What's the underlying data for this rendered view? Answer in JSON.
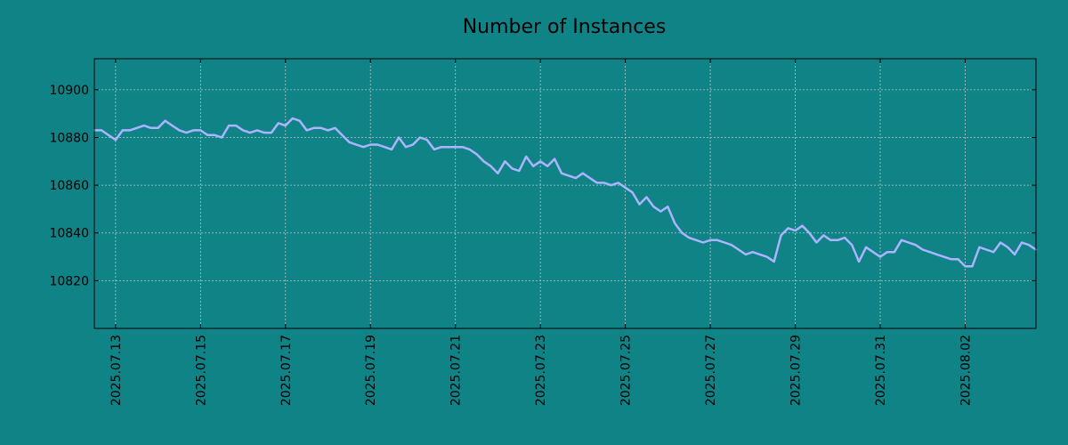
{
  "chart_data": {
    "type": "line",
    "title": "Number of Instances",
    "xlabel": "",
    "ylabel": "",
    "x_ticks": [
      "2025.07.13",
      "2025.07.15",
      "2025.07.17",
      "2025.07.19",
      "2025.07.21",
      "2025.07.23",
      "2025.07.25",
      "2025.07.27",
      "2025.07.29",
      "2025.07.31",
      "2025.08.02"
    ],
    "y_ticks": [
      10820,
      10840,
      10860,
      10880,
      10900
    ],
    "xlim": [
      "2025-07-12 12:00",
      "2025-08-03 16:00"
    ],
    "ylim": [
      10800,
      10913
    ],
    "grid": true,
    "legend": "none",
    "colors": {
      "background": "#108387",
      "line": "#aab4ff",
      "grid": "#b5c9c9",
      "axis": "#000000"
    },
    "series": [
      {
        "x": [
          "2025-07-12 12:00",
          "2025-07-12 16:00",
          "2025-07-12 20:00",
          "2025-07-13 00:00",
          "2025-07-13 04:00",
          "2025-07-13 08:00",
          "2025-07-13 12:00",
          "2025-07-13 16:00",
          "2025-07-13 20:00",
          "2025-07-14 00:00",
          "2025-07-14 04:00",
          "2025-07-14 08:00",
          "2025-07-14 12:00",
          "2025-07-14 16:00",
          "2025-07-14 20:00",
          "2025-07-15 00:00",
          "2025-07-15 04:00",
          "2025-07-15 08:00",
          "2025-07-15 12:00",
          "2025-07-15 16:00",
          "2025-07-15 20:00",
          "2025-07-16 00:00",
          "2025-07-16 04:00",
          "2025-07-16 08:00",
          "2025-07-16 12:00",
          "2025-07-16 16:00",
          "2025-07-16 20:00",
          "2025-07-17 00:00",
          "2025-07-17 04:00",
          "2025-07-17 08:00",
          "2025-07-17 12:00",
          "2025-07-17 16:00",
          "2025-07-17 20:00",
          "2025-07-18 00:00",
          "2025-07-18 04:00",
          "2025-07-18 08:00",
          "2025-07-18 12:00",
          "2025-07-18 16:00",
          "2025-07-18 20:00",
          "2025-07-19 00:00",
          "2025-07-19 04:00",
          "2025-07-19 08:00",
          "2025-07-19 12:00",
          "2025-07-19 16:00",
          "2025-07-19 20:00",
          "2025-07-20 00:00",
          "2025-07-20 04:00",
          "2025-07-20 08:00",
          "2025-07-20 12:00",
          "2025-07-20 16:00",
          "2025-07-20 20:00",
          "2025-07-21 00:00",
          "2025-07-21 04:00",
          "2025-07-21 08:00",
          "2025-07-21 12:00",
          "2025-07-21 16:00",
          "2025-07-21 20:00",
          "2025-07-22 00:00",
          "2025-07-22 04:00",
          "2025-07-22 08:00",
          "2025-07-22 12:00",
          "2025-07-22 16:00",
          "2025-07-22 20:00",
          "2025-07-23 00:00",
          "2025-07-23 04:00",
          "2025-07-23 08:00",
          "2025-07-23 12:00",
          "2025-07-23 16:00",
          "2025-07-23 20:00",
          "2025-07-24 00:00",
          "2025-07-24 04:00",
          "2025-07-24 08:00",
          "2025-07-24 12:00",
          "2025-07-24 16:00",
          "2025-07-24 20:00",
          "2025-07-25 00:00",
          "2025-07-25 04:00",
          "2025-07-25 08:00",
          "2025-07-25 12:00",
          "2025-07-25 16:00",
          "2025-07-25 20:00",
          "2025-07-26 00:00",
          "2025-07-26 04:00",
          "2025-07-26 08:00",
          "2025-07-26 12:00",
          "2025-07-26 16:00",
          "2025-07-26 20:00",
          "2025-07-27 00:00",
          "2025-07-27 04:00",
          "2025-07-27 08:00",
          "2025-07-27 12:00",
          "2025-07-27 16:00",
          "2025-07-27 20:00",
          "2025-07-28 00:00",
          "2025-07-28 04:00",
          "2025-07-28 08:00",
          "2025-07-28 12:00",
          "2025-07-28 16:00",
          "2025-07-28 20:00",
          "2025-07-29 00:00",
          "2025-07-29 04:00",
          "2025-07-29 08:00",
          "2025-07-29 12:00",
          "2025-07-29 16:00",
          "2025-07-29 20:00",
          "2025-07-30 00:00",
          "2025-07-30 04:00",
          "2025-07-30 08:00",
          "2025-07-30 12:00",
          "2025-07-30 16:00",
          "2025-07-30 20:00",
          "2025-07-31 00:00",
          "2025-07-31 04:00",
          "2025-07-31 08:00",
          "2025-07-31 12:00",
          "2025-07-31 16:00",
          "2025-07-31 20:00",
          "2025-08-01 00:00",
          "2025-08-01 04:00",
          "2025-08-01 08:00",
          "2025-08-01 12:00",
          "2025-08-01 16:00",
          "2025-08-01 20:00",
          "2025-08-02 00:00",
          "2025-08-02 04:00",
          "2025-08-02 08:00",
          "2025-08-02 12:00",
          "2025-08-02 16:00",
          "2025-08-02 20:00",
          "2025-08-03 00:00",
          "2025-08-03 04:00",
          "2025-08-03 08:00",
          "2025-08-03 12:00",
          "2025-08-03 16:00"
        ],
        "values": [
          10883,
          10883,
          10881,
          10879,
          10883,
          10883,
          10884,
          10885,
          10884,
          10884,
          10887,
          10885,
          10883,
          10882,
          10883,
          10883,
          10881,
          10881,
          10880,
          10885,
          10885,
          10883,
          10882,
          10883,
          10882,
          10882,
          10886,
          10885,
          10888,
          10887,
          10883,
          10884,
          10884,
          10883,
          10884,
          10881,
          10878,
          10877,
          10876,
          10877,
          10877,
          10876,
          10875,
          10880,
          10876,
          10877,
          10880,
          10879,
          10875,
          10876,
          10876,
          10876,
          10876,
          10875,
          10873,
          10870,
          10868,
          10865,
          10870,
          10867,
          10866,
          10872,
          10868,
          10870,
          10868,
          10871,
          10865,
          10864,
          10863,
          10865,
          10863,
          10861,
          10861,
          10860,
          10861,
          10859,
          10857,
          10852,
          10855,
          10851,
          10849,
          10851,
          10844,
          10840,
          10838,
          10837,
          10836,
          10837,
          10837,
          10836,
          10835,
          10833,
          10831,
          10832,
          10831,
          10830,
          10828,
          10839,
          10842,
          10841,
          10843,
          10840,
          10836,
          10839,
          10837,
          10837,
          10838,
          10835,
          10828,
          10834,
          10832,
          10830,
          10832,
          10832,
          10837,
          10836,
          10835,
          10833,
          10832,
          10831,
          10830,
          10829,
          10829,
          10826,
          10826,
          10834,
          10833,
          10832,
          10836,
          10834,
          10831,
          10836,
          10835,
          10833
        ]
      }
    ]
  }
}
